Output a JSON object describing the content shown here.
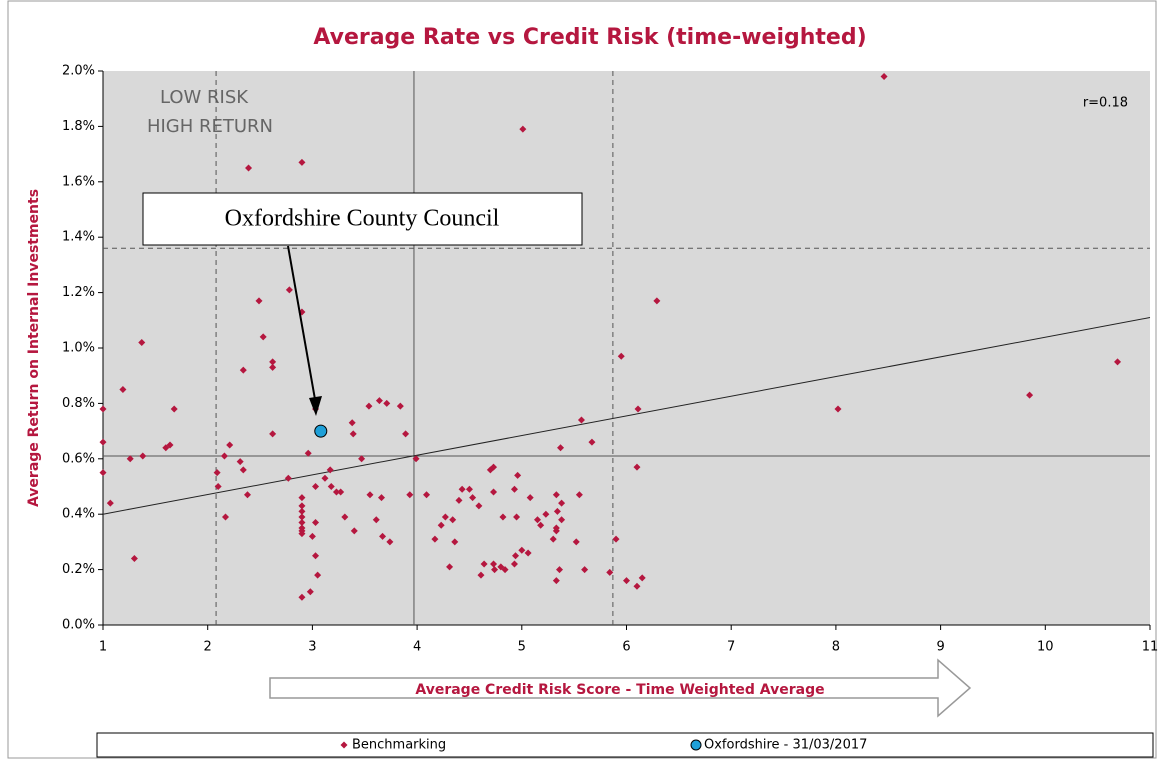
{
  "chart_data": {
    "type": "scatter",
    "title": "Average Rate vs Credit Risk (time-weighted)",
    "x_label": "Average Credit Risk Score - Time Weighted Average",
    "y_label": "Average Return on Internal Investments",
    "annotations": [
      "LOW RISK",
      "HIGH RETURN",
      "r=0.18",
      "Oxfordshire County Council"
    ],
    "xlim": [
      1,
      11
    ],
    "ylim": [
      0,
      2
    ],
    "xticks": [
      1,
      2,
      3,
      4,
      5,
      6,
      7,
      8,
      9,
      10,
      11
    ],
    "yticks": [
      {
        "value": 0,
        "label": "0.0%"
      },
      {
        "value": 0.2,
        "label": "0.2%"
      },
      {
        "value": 0.4,
        "label": "0.4%"
      },
      {
        "value": 0.6,
        "label": "0.6%"
      },
      {
        "value": 0.8,
        "label": "0.8%"
      },
      {
        "value": 1.0,
        "label": "1.0%"
      },
      {
        "value": 1.2,
        "label": "1.2%"
      },
      {
        "value": 1.4,
        "label": "1.4%"
      },
      {
        "value": 1.6,
        "label": "1.6%"
      },
      {
        "value": 1.8,
        "label": "1.8%"
      },
      {
        "value": 2.0,
        "label": "2.0%"
      }
    ],
    "vlines": [
      {
        "x": 2.08,
        "style": "dashed"
      },
      {
        "x": 3.97,
        "style": "solid"
      },
      {
        "x": 5.87,
        "style": "dashed"
      }
    ],
    "hlines": [
      {
        "y": 0.61,
        "style": "solid"
      },
      {
        "y": 1.36,
        "style": "dashed"
      }
    ],
    "trendline": {
      "x": [
        1,
        11
      ],
      "y": [
        0.4,
        1.11
      ]
    },
    "series": [
      {
        "name": "Benchmarking",
        "color": "#b5173f",
        "marker": "diamond",
        "x": [
          1.0,
          1.0,
          1.0,
          1.07,
          1.19,
          1.26,
          1.3,
          1.37,
          1.38,
          1.6,
          1.64,
          1.68,
          2.09,
          2.1,
          2.16,
          2.17,
          2.21,
          2.31,
          2.34,
          2.34,
          2.38,
          2.39,
          2.49,
          2.53,
          2.62,
          2.62,
          2.62,
          2.77,
          2.78,
          2.9,
          2.9,
          2.9,
          2.9,
          2.9,
          2.9,
          2.9,
          2.9,
          2.9,
          2.9,
          2.9,
          2.96,
          2.98,
          3.0,
          3.03,
          3.03,
          3.03,
          3.03,
          3.05,
          3.12,
          3.17,
          3.18,
          3.23,
          3.27,
          3.31,
          3.38,
          3.39,
          3.4,
          3.47,
          3.54,
          3.55,
          3.61,
          3.64,
          3.66,
          3.67,
          3.71,
          3.74,
          3.84,
          3.89,
          3.93,
          3.99,
          4.09,
          4.17,
          4.23,
          4.27,
          4.31,
          4.34,
          4.36,
          4.4,
          4.43,
          4.5,
          4.53,
          4.59,
          4.61,
          4.64,
          4.7,
          4.73,
          4.73,
          4.73,
          4.74,
          4.8,
          4.82,
          4.84,
          4.93,
          4.93,
          4.95,
          4.94,
          4.96,
          5.0,
          5.01,
          5.06,
          5.08,
          5.15,
          5.18,
          5.23,
          5.3,
          5.33,
          5.33,
          5.33,
          5.33,
          5.34,
          5.36,
          5.38,
          5.37,
          5.38,
          5.52,
          5.55,
          5.57,
          5.6,
          5.67,
          5.84,
          5.9,
          5.95,
          6.0,
          6.1,
          6.11,
          6.1,
          6.15,
          6.29,
          8.02,
          8.46,
          9.85,
          10.69
        ],
        "values": [
          0.78,
          0.66,
          0.55,
          0.44,
          0.85,
          0.6,
          0.24,
          1.02,
          0.61,
          0.64,
          0.65,
          0.78,
          0.55,
          0.5,
          0.61,
          0.39,
          0.65,
          0.59,
          0.92,
          0.56,
          0.47,
          1.65,
          1.17,
          1.04,
          0.95,
          0.93,
          0.69,
          0.53,
          1.21,
          1.67,
          1.13,
          0.46,
          0.43,
          0.41,
          0.39,
          0.37,
          0.35,
          0.34,
          0.33,
          0.1,
          0.62,
          0.12,
          0.32,
          0.37,
          0.78,
          0.5,
          0.25,
          0.18,
          0.53,
          0.56,
          0.5,
          0.48,
          0.48,
          0.39,
          0.73,
          0.69,
          0.34,
          0.6,
          0.79,
          0.47,
          0.38,
          0.81,
          0.46,
          0.32,
          0.8,
          0.3,
          0.79,
          0.69,
          0.47,
          0.6,
          0.47,
          0.31,
          0.36,
          0.39,
          0.21,
          0.38,
          0.3,
          0.45,
          0.49,
          0.49,
          0.46,
          0.43,
          0.18,
          0.22,
          0.56,
          0.57,
          0.22,
          0.48,
          0.2,
          0.21,
          0.39,
          0.2,
          0.22,
          0.49,
          0.39,
          0.25,
          0.54,
          0.27,
          1.79,
          0.26,
          0.46,
          0.38,
          0.36,
          0.4,
          0.31,
          0.47,
          0.34,
          0.16,
          0.35,
          0.41,
          0.2,
          0.44,
          0.64,
          0.38,
          0.3,
          0.47,
          0.74,
          0.2,
          0.66,
          0.19,
          0.31,
          0.97,
          0.16,
          0.14,
          0.78,
          0.57,
          0.17,
          1.17,
          0.78,
          1.98,
          0.83,
          0.95
        ]
      },
      {
        "name": "Oxfordshire - 31/03/2017",
        "color": "#1fa0d8",
        "marker": "circle",
        "x": [
          3.08
        ],
        "values": [
          0.7
        ]
      }
    ]
  }
}
